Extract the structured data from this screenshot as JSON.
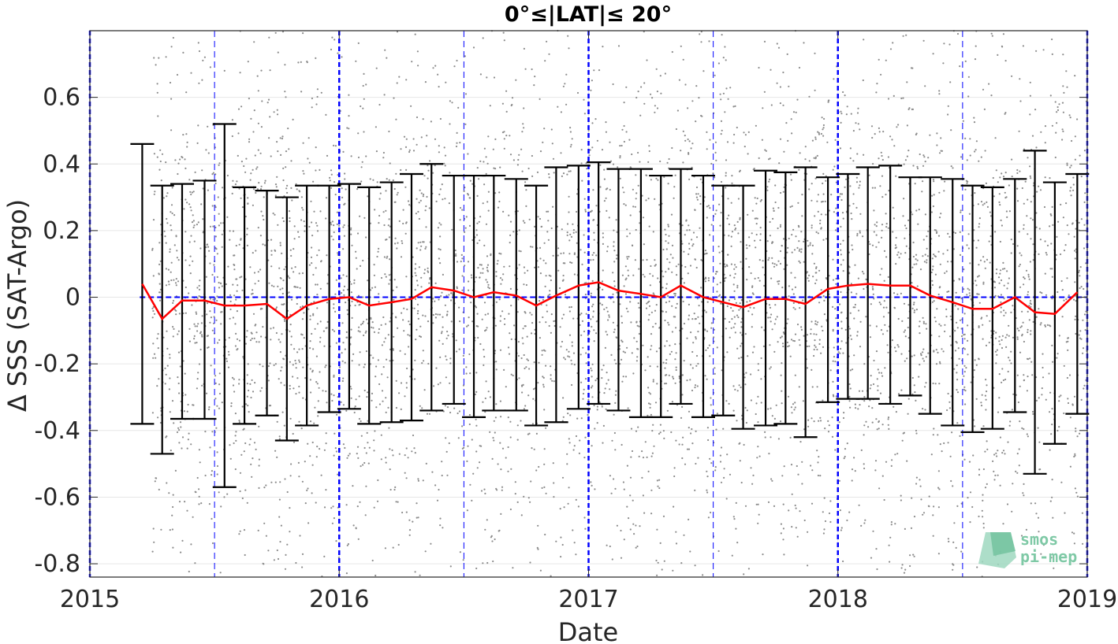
{
  "chart_data": {
    "type": "scatter",
    "title": "0°≤|LAT|≤ 20°",
    "xlabel": "Date",
    "ylabel": "Δ SSS (SAT-Argo)",
    "xlim": [
      2015.0,
      2019.0
    ],
    "ylim": [
      -0.84,
      0.8
    ],
    "x_ticks": [
      2015,
      2016,
      2017,
      2018,
      2019
    ],
    "x_tick_labels": [
      "2015",
      "2016",
      "2017",
      "2018",
      "2019"
    ],
    "y_ticks": [
      0.6,
      0.4,
      0.2,
      0,
      -0.2,
      -0.4,
      -0.6,
      -0.8
    ],
    "y_tick_labels": [
      "0.6",
      "0.4",
      "0.2",
      "0",
      "-0.2",
      "-0.4",
      "-0.6",
      "-0.8"
    ],
    "grid": true,
    "colors": {
      "scatter": "#8c8c8c",
      "median_line": "#ff0000",
      "errorbar": "#000000",
      "vertical_lines": "#0000ff",
      "zero_line": "#0000ff"
    },
    "scatter_points": {
      "description_series": "Individual SAT-Argo differences",
      "x_range": [
        2015.25,
        2019.0
      ],
      "y_range": [
        -0.84,
        0.8
      ],
      "density": "dense"
    },
    "year_markers": [
      2015.0,
      2016.0,
      2017.0,
      2018.0,
      2019.0
    ],
    "half_year_markers": [
      2015.5,
      2016.5,
      2017.5,
      2018.5
    ],
    "zero_line_x_range": [
      2015.2,
      2019.0
    ],
    "series": [
      {
        "type": "errorbar",
        "x": [
          2015.21,
          2015.29,
          2015.37,
          2015.46,
          2015.54,
          2015.62,
          2015.71,
          2015.79,
          2015.87,
          2015.96,
          2016.04,
          2016.12,
          2016.21,
          2016.29,
          2016.37,
          2016.46,
          2016.54,
          2016.62,
          2016.71,
          2016.79,
          2016.87,
          2016.96,
          2017.04,
          2017.12,
          2017.21,
          2017.29,
          2017.37,
          2017.46,
          2017.54,
          2017.62,
          2017.71,
          2017.79,
          2017.87,
          2017.96,
          2018.04,
          2018.12,
          2018.21,
          2018.29,
          2018.37,
          2018.46,
          2018.54,
          2018.62,
          2018.71,
          2018.79,
          2018.87,
          2018.96
        ],
        "y": [
          0.04,
          -0.065,
          -0.01,
          -0.01,
          -0.025,
          -0.025,
          -0.02,
          -0.065,
          -0.025,
          -0.005,
          0.0,
          -0.025,
          -0.015,
          -0.005,
          0.03,
          0.02,
          0.0,
          0.015,
          0.005,
          -0.025,
          0.005,
          0.035,
          0.045,
          0.02,
          0.01,
          0.0,
          0.035,
          0.0,
          -0.015,
          -0.03,
          -0.005,
          -0.005,
          -0.02,
          0.025,
          0.035,
          0.04,
          0.035,
          0.035,
          0.005,
          -0.015,
          -0.035,
          -0.035,
          0.0,
          -0.045,
          -0.05,
          0.015
        ],
        "upper": [
          0.46,
          0.335,
          0.34,
          0.35,
          0.52,
          0.33,
          0.32,
          0.3,
          0.335,
          0.335,
          0.34,
          0.33,
          0.345,
          0.37,
          0.4,
          0.365,
          0.365,
          0.365,
          0.355,
          0.335,
          0.39,
          0.395,
          0.405,
          0.385,
          0.385,
          0.365,
          0.385,
          0.365,
          0.335,
          0.335,
          0.38,
          0.375,
          0.39,
          0.36,
          0.37,
          0.39,
          0.395,
          0.36,
          0.36,
          0.355,
          0.335,
          0.33,
          0.355,
          0.44,
          0.345,
          0.37
        ],
        "lower": [
          -0.38,
          -0.47,
          -0.365,
          -0.365,
          -0.57,
          -0.38,
          -0.355,
          -0.43,
          -0.385,
          -0.345,
          -0.335,
          -0.38,
          -0.375,
          -0.37,
          -0.34,
          -0.32,
          -0.36,
          -0.34,
          -0.34,
          -0.385,
          -0.375,
          -0.335,
          -0.32,
          -0.34,
          -0.36,
          -0.36,
          -0.32,
          -0.36,
          -0.355,
          -0.395,
          -0.385,
          -0.38,
          -0.42,
          -0.315,
          -0.305,
          -0.305,
          -0.32,
          -0.295,
          -0.35,
          -0.385,
          -0.405,
          -0.395,
          -0.345,
          -0.53,
          -0.44,
          -0.35
        ]
      }
    ]
  },
  "watermark": {
    "line1": "smos",
    "line2": "pi-mep"
  }
}
